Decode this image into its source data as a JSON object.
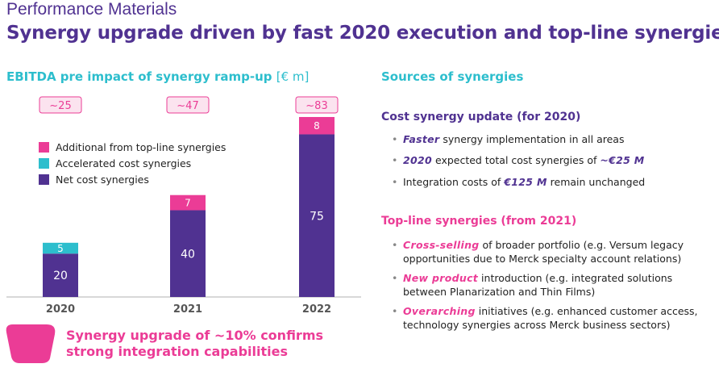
{
  "header": {
    "kicker": "Performance Materials",
    "title": "Synergy upgrade driven by fast 2020 execution and top-line synergies"
  },
  "chart_panel": {
    "title": "EBITDA pre impact of synergy ramp-up",
    "unit": "[€ m]"
  },
  "chart_data": {
    "type": "bar",
    "stacked": true,
    "categories": [
      "2020",
      "2021",
      "2022"
    ],
    "series": [
      {
        "name": "Net cost synergies",
        "values": [
          20,
          40,
          75
        ],
        "color": "#503291"
      },
      {
        "name": "Accelerated cost synergies",
        "values": [
          5,
          0,
          0
        ],
        "color": "#2dbecd"
      },
      {
        "name": "Additional from top-line synergies",
        "values": [
          0,
          7,
          8
        ],
        "color": "#eb3c96"
      }
    ],
    "totals": [
      "~25",
      "~47",
      "~83"
    ],
    "legend_order": [
      "Additional from top-line synergies",
      "Accelerated cost synergies",
      "Net cost synergies"
    ],
    "legend_position": "upper-left"
  },
  "sources": {
    "title": "Sources of synergies",
    "cost": {
      "heading": "Cost synergy update (for 2020)",
      "bullets": [
        {
          "kw": "Faster",
          "text": " synergy implementation in all areas"
        },
        {
          "kw": "2020",
          "text": " expected total cost synergies of ",
          "kw2": "~€25 M"
        },
        {
          "pre": "Integration costs of ",
          "kw2": "€125 M",
          "text": " remain unchanged"
        }
      ]
    },
    "topline": {
      "heading": "Top-line synergies (from 2021)",
      "bullets": [
        {
          "kw": "Cross-selling",
          "line1": " of broader portfolio (e.g. Versum legacy",
          "line2": "opportunities due to Merck specialty account relations)"
        },
        {
          "kw": "New product",
          "line1": " introduction (e.g. integrated solutions",
          "line2": "between Planarization and Thin Films)"
        },
        {
          "kw": "Overarching",
          "line1": " initiatives (e.g. enhanced customer access,",
          "line2": "technology synergies across Merck business sectors)"
        }
      ]
    }
  },
  "callout": {
    "line1": "Synergy upgrade of ~10% confirms",
    "line2": "strong integration capabilities"
  },
  "colors": {
    "purple": "#503291",
    "teal": "#2dbecd",
    "pink": "#eb3c96"
  }
}
